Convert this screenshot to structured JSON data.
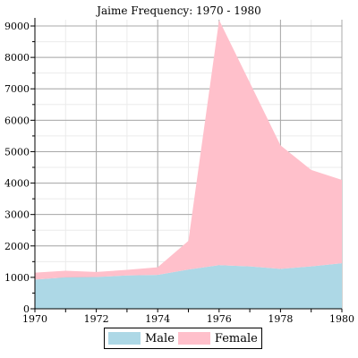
{
  "chart_data": {
    "type": "area",
    "stacked": true,
    "title": "Jaime Frequency: 1970 - 1980",
    "xlabel": "",
    "ylabel": "",
    "x": [
      1970,
      1971,
      1972,
      1973,
      1974,
      1975,
      1976,
      1977,
      1978,
      1979,
      1980
    ],
    "xlim": [
      1970,
      1980
    ],
    "ylim": [
      0,
      9200
    ],
    "x_ticks": [
      "1970",
      "1972",
      "1974",
      "1976",
      "1978",
      "1980"
    ],
    "y_ticks": [
      "0",
      "1000",
      "2000",
      "3000",
      "4000",
      "5000",
      "6000",
      "7000",
      "8000",
      "9000"
    ],
    "grid": true,
    "legend_position": "bottom",
    "series": [
      {
        "name": "Male",
        "color": "#add8e6",
        "values": [
          930,
          1000,
          1010,
          1060,
          1080,
          1250,
          1390,
          1350,
          1270,
          1350,
          1450
        ]
      },
      {
        "name": "Female",
        "color": "#ffc0cb",
        "values": [
          220,
          210,
          160,
          180,
          240,
          910,
          7800,
          5850,
          3930,
          3070,
          2650
        ]
      }
    ]
  }
}
